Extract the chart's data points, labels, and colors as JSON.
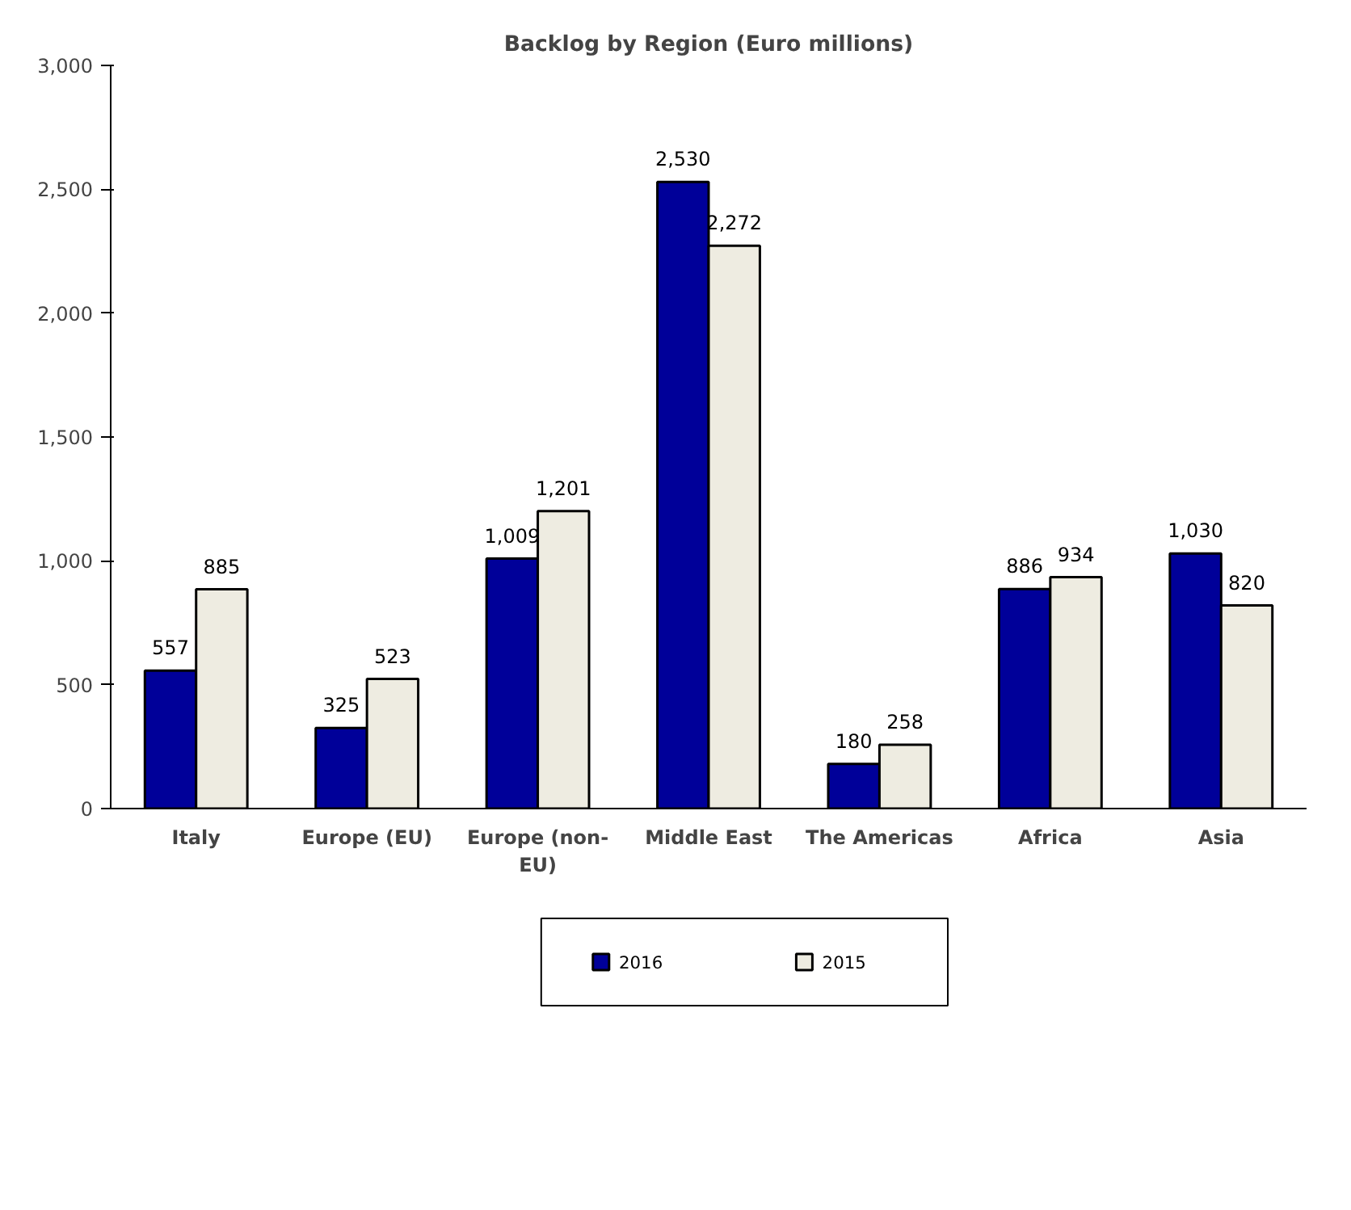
{
  "chart_data": {
    "type": "bar",
    "title": "Backlog by Region (Euro millions)",
    "categories": [
      "Italy",
      "Europe (EU)",
      "Europe (non-EU)",
      "Middle East",
      "The Americas",
      "Africa",
      "Asia"
    ],
    "series": [
      {
        "name": "2016",
        "color": "#000099",
        "values": [
          557,
          325,
          1009,
          2530,
          180,
          886,
          1030
        ],
        "value_labels": [
          "557",
          "325",
          "1,009",
          "2,530",
          "180",
          "886",
          "1,030"
        ]
      },
      {
        "name": "2015",
        "color": "#eeece1",
        "values": [
          885,
          523,
          1201,
          2272,
          258,
          934,
          820
        ],
        "value_labels": [
          "885",
          "523",
          "1,201",
          "2,272",
          "258",
          "934",
          "820"
        ]
      }
    ],
    "ylim": [
      0,
      3000
    ],
    "yticks": [
      0,
      {
        "value": 500,
        "label": "500"
      },
      {
        "value": 1000,
        "label": "1,000"
      },
      {
        "value": 1500,
        "label": "1,500"
      },
      {
        "value": 2000,
        "label": "2,000"
      },
      {
        "value": 2500,
        "label": "2,500"
      },
      {
        "value": 3000,
        "label": "3,000"
      }
    ],
    "grid": false,
    "legend": "bottom"
  }
}
